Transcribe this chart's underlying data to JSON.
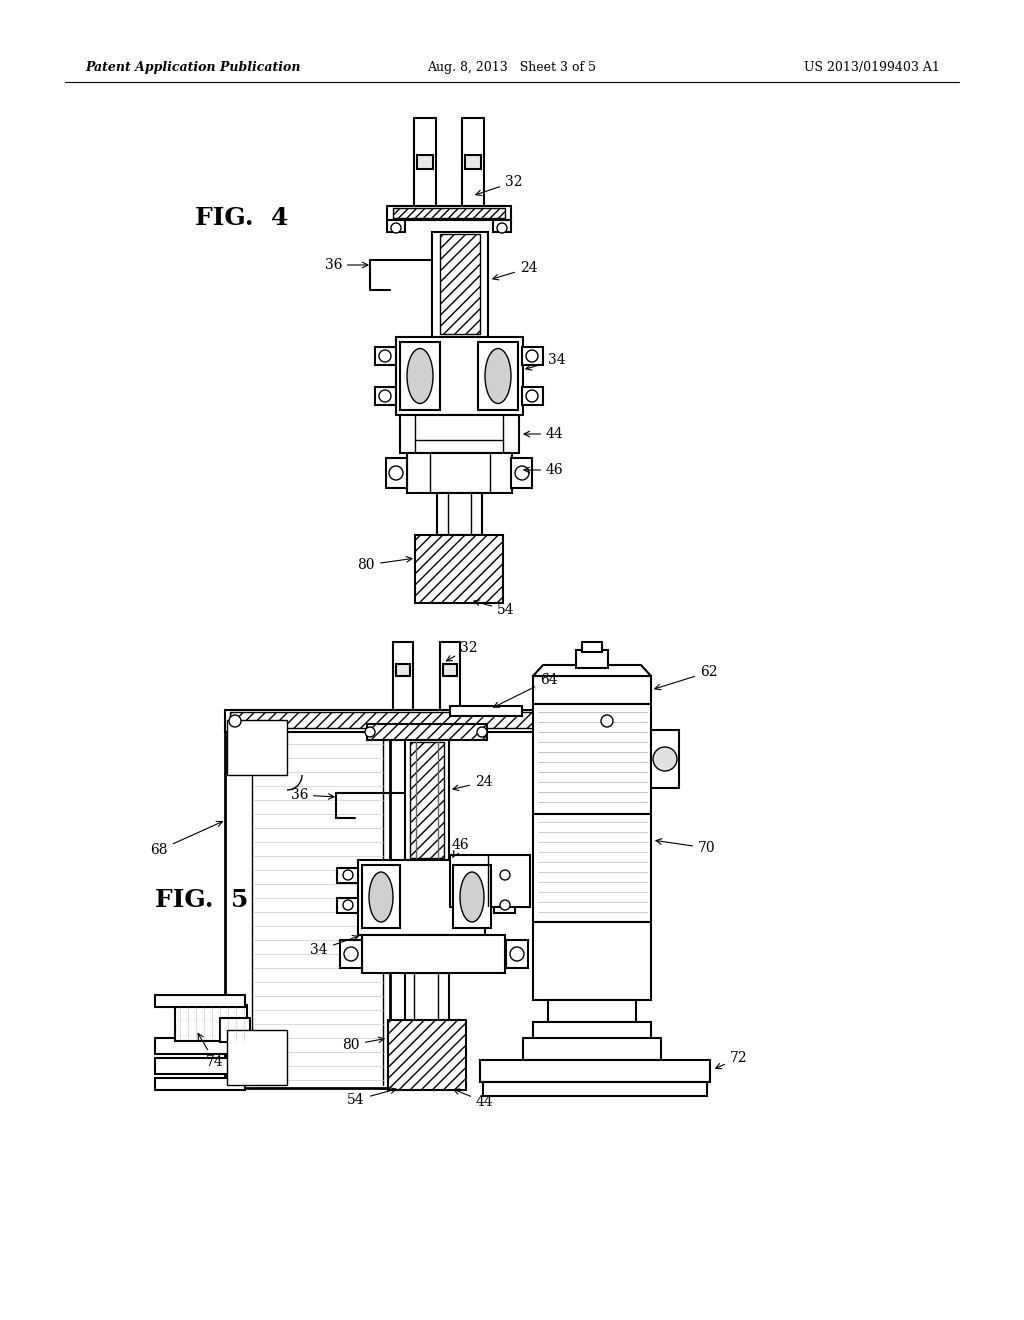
{
  "bg_color": "#ffffff",
  "line_color": "#000000",
  "header_left": "Patent Application Publication",
  "header_center": "Aug. 8, 2013   Sheet 3 of 5",
  "header_right": "US 2013/0199403 A1",
  "fig4_label": "FIG.  4",
  "fig5_label": "FIG.  5"
}
